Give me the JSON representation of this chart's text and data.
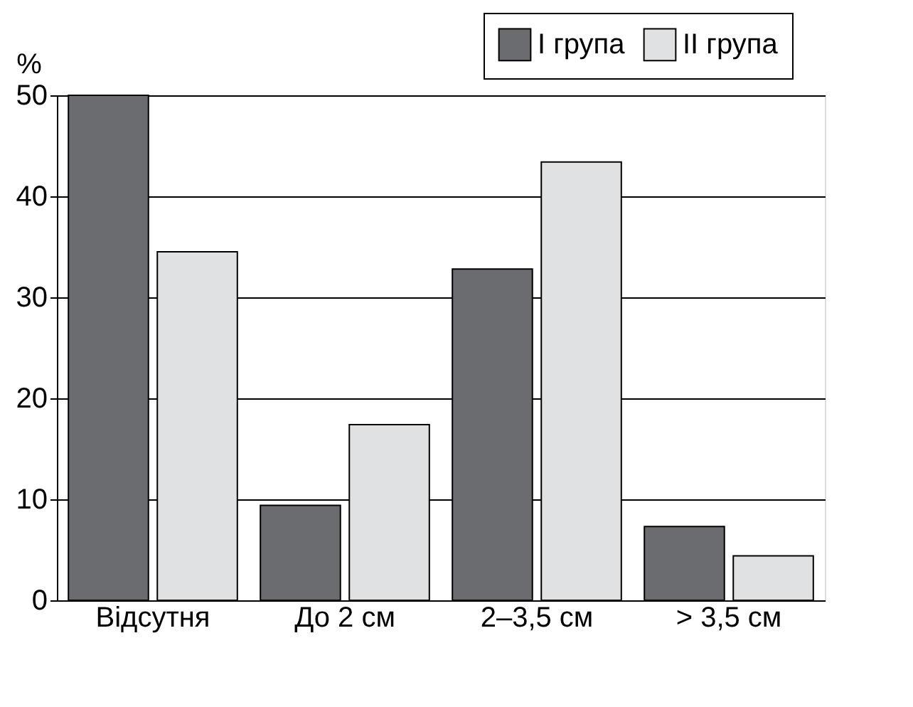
{
  "chart_data": {
    "type": "bar",
    "ylabel": "%",
    "categories": [
      "Відсутня",
      "До 2 см",
      "2–3,5 см",
      "> 3,5 см"
    ],
    "series": [
      {
        "name": "I група",
        "color": "#6b6c70",
        "values": [
          50,
          9.4,
          32.8,
          7.3
        ]
      },
      {
        "name": "II група",
        "color": "#e0e1e3",
        "values": [
          34.5,
          17.4,
          43.4,
          4.4
        ]
      }
    ],
    "ylim": [
      0,
      50
    ],
    "yticks": [
      0,
      10,
      20,
      30,
      40,
      50
    ],
    "grid": "y",
    "legend": "top right"
  }
}
